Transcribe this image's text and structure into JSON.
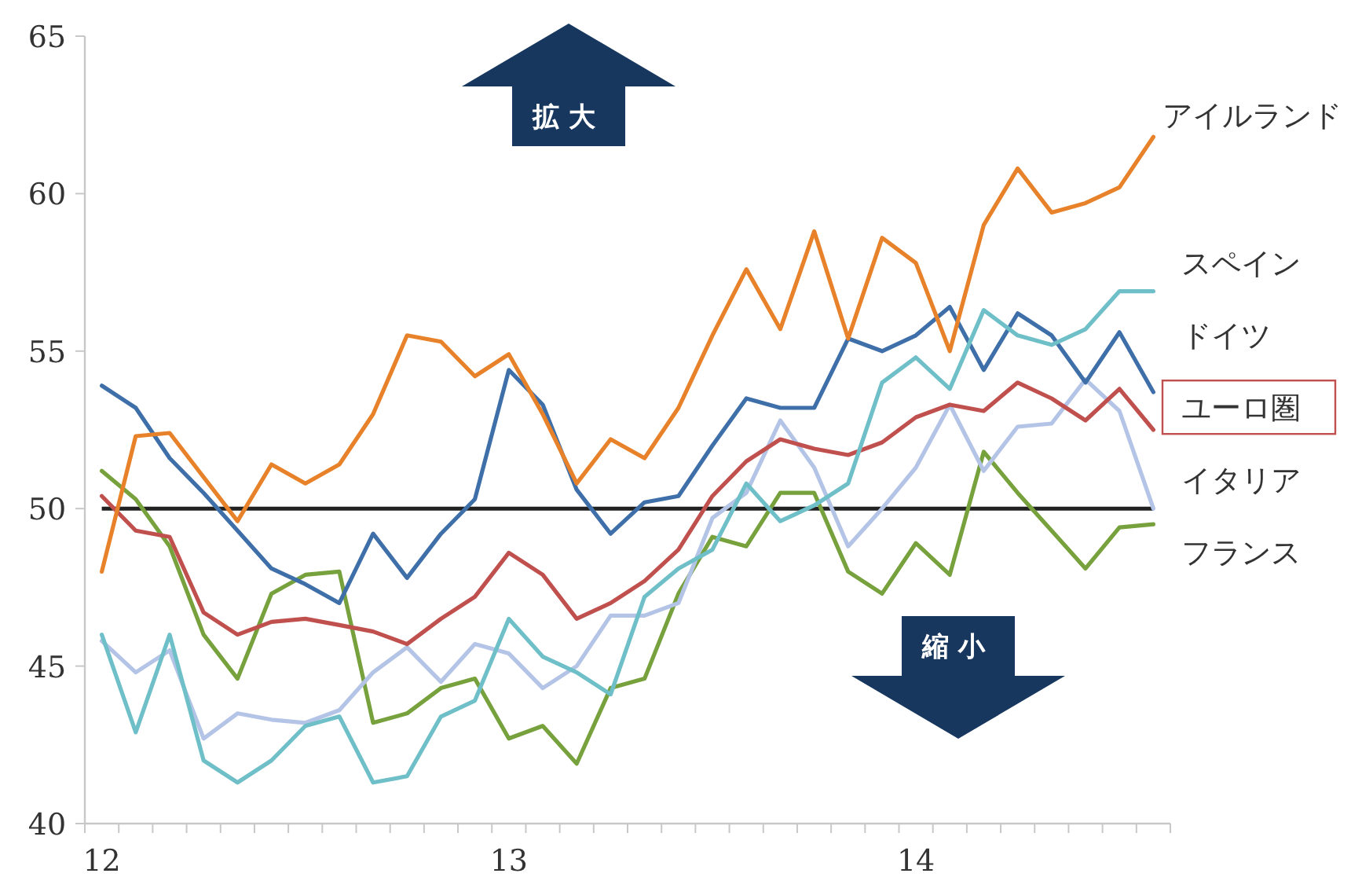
{
  "chart_data": {
    "type": "line",
    "categories": [
      "12",
      null,
      null,
      null,
      null,
      null,
      null,
      null,
      null,
      null,
      null,
      null,
      "13",
      null,
      null,
      null,
      null,
      null,
      null,
      null,
      null,
      null,
      null,
      null,
      "14",
      null,
      null,
      null,
      null,
      null,
      null,
      null
    ],
    "series": [
      {
        "name": "アイルランド",
        "color": "#e8822a",
        "values": [
          48.0,
          52.3,
          52.4,
          51.0,
          49.6,
          51.4,
          50.8,
          51.4,
          53.0,
          55.5,
          55.3,
          54.2,
          54.9,
          53.0,
          50.8,
          52.2,
          51.6,
          53.2,
          55.5,
          57.6,
          55.7,
          58.8,
          55.4,
          58.6,
          57.8,
          55.0,
          59.0,
          60.8,
          59.4,
          59.7,
          60.2,
          61.8
        ]
      },
      {
        "name": "スペイン",
        "color": "#6fbfc9",
        "values": [
          46.0,
          42.9,
          46.0,
          42.0,
          41.3,
          42.0,
          43.1,
          43.4,
          41.3,
          41.5,
          43.4,
          43.9,
          46.5,
          45.3,
          44.8,
          44.1,
          47.2,
          48.1,
          48.7,
          50.8,
          49.6,
          50.1,
          50.8,
          54.0,
          54.8,
          53.8,
          56.3,
          55.5,
          55.2,
          55.7,
          56.9,
          56.9
        ]
      },
      {
        "name": "ドイツ",
        "color": "#3e6fa8",
        "values": [
          53.9,
          53.2,
          51.6,
          50.5,
          49.3,
          48.1,
          47.6,
          47.0,
          49.2,
          47.8,
          49.2,
          50.3,
          54.4,
          53.3,
          50.6,
          49.2,
          50.2,
          50.4,
          52.0,
          53.5,
          53.2,
          53.2,
          55.4,
          55.0,
          55.5,
          56.4,
          54.4,
          56.2,
          55.5,
          54.0,
          55.6,
          53.7
        ]
      },
      {
        "name": "ユーロ圏",
        "color": "#c0504d",
        "values": [
          50.4,
          49.3,
          49.1,
          46.7,
          46.0,
          46.4,
          46.5,
          46.3,
          46.1,
          45.7,
          46.5,
          47.2,
          48.6,
          47.9,
          46.5,
          47.0,
          47.7,
          48.7,
          50.4,
          51.5,
          52.2,
          51.9,
          51.7,
          52.1,
          52.9,
          53.3,
          53.1,
          54.0,
          53.5,
          52.8,
          53.8,
          52.5
        ]
      },
      {
        "name": "イタリア",
        "color": "#b4c4e6",
        "values": [
          45.8,
          44.8,
          45.5,
          42.7,
          43.5,
          43.3,
          43.2,
          43.6,
          44.8,
          45.6,
          44.5,
          45.7,
          45.4,
          44.3,
          45.0,
          46.6,
          46.6,
          47.0,
          49.7,
          50.5,
          52.8,
          51.3,
          48.8,
          50.0,
          51.3,
          53.3,
          51.2,
          52.6,
          52.7,
          54.1,
          53.1,
          50.0
        ]
      },
      {
        "name": "フランス",
        "color": "#77a13c",
        "values": [
          51.2,
          50.3,
          48.8,
          46.0,
          44.6,
          47.3,
          47.9,
          48.0,
          43.2,
          43.5,
          44.3,
          44.6,
          42.7,
          43.1,
          41.9,
          44.3,
          44.6,
          47.3,
          49.1,
          48.8,
          50.5,
          50.5,
          48.0,
          47.3,
          48.9,
          47.9,
          51.8,
          50.5,
          49.3,
          48.1,
          49.4,
          49.5
        ]
      }
    ],
    "ylim": [
      40,
      65
    ],
    "yticks": [
      40,
      45,
      50,
      55,
      60,
      65
    ],
    "ref_lines": [
      {
        "axis": "y",
        "value": 50,
        "label": null,
        "color": "#222222"
      }
    ],
    "annotations": [
      "拡大",
      "縮小"
    ],
    "grid": false,
    "legend": false,
    "marker": "none",
    "line_style": "solid"
  }
}
